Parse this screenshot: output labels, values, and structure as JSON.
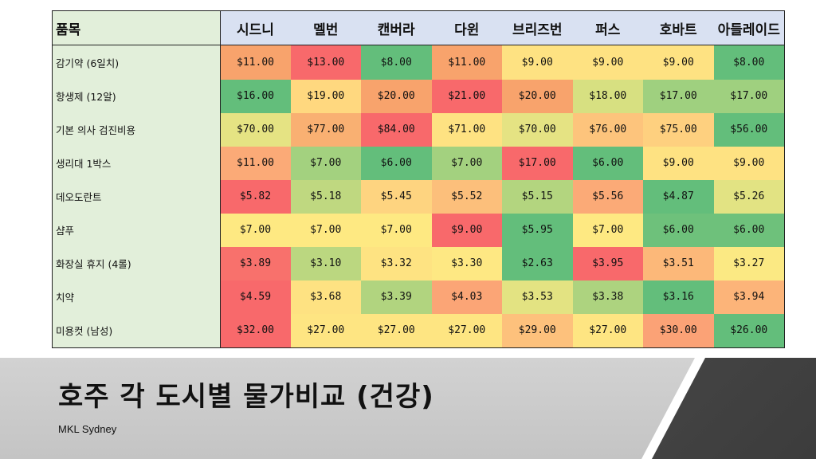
{
  "table": {
    "item_header": "품목",
    "cities": [
      "시드니",
      "멜번",
      "캔버라",
      "다윈",
      "브리즈번",
      "퍼스",
      "호바트",
      "아들레이드"
    ],
    "rows": [
      {
        "item": "감기약 (6일치)",
        "values": [
          "$11.00",
          "$13.00",
          "$8.00",
          "$11.00",
          "$9.00",
          "$9.00",
          "$9.00",
          "$8.00"
        ],
        "colors": [
          "#f8a36c",
          "#f8696b",
          "#63be7b",
          "#f8a36c",
          "#fee282",
          "#fee282",
          "#fee282",
          "#63be7b"
        ]
      },
      {
        "item": "항생제 (12알)",
        "values": [
          "$16.00",
          "$19.00",
          "$20.00",
          "$21.00",
          "$20.00",
          "$18.00",
          "$17.00",
          "$17.00"
        ],
        "colors": [
          "#63be7b",
          "#ffd87f",
          "#f8a36c",
          "#f8696b",
          "#f8a36c",
          "#d7e081",
          "#9fd07f",
          "#9fd07f"
        ]
      },
      {
        "item": "기본 의사 검진비용",
        "values": [
          "$70.00",
          "$77.00",
          "$84.00",
          "$71.00",
          "$70.00",
          "$76.00",
          "$75.00",
          "$56.00"
        ],
        "colors": [
          "#e5e383",
          "#f9b072",
          "#f8696b",
          "#fee282",
          "#e5e383",
          "#fdc47c",
          "#fed07f",
          "#63be7b"
        ]
      },
      {
        "item": "생리대 1박스",
        "values": [
          "$11.00",
          "$7.00",
          "$6.00",
          "$7.00",
          "$17.00",
          "$6.00",
          "$9.00",
          "$9.00"
        ],
        "colors": [
          "#fbaa77",
          "#a3d17f",
          "#63be7b",
          "#a3d17f",
          "#f8696b",
          "#63be7b",
          "#fee282",
          "#fee282"
        ]
      },
      {
        "item": "데오도란트",
        "values": [
          "$5.82",
          "$5.18",
          "$5.45",
          "$5.52",
          "$5.15",
          "$5.56",
          "$4.87",
          "$5.26"
        ],
        "colors": [
          "#f8696b",
          "#bfd880",
          "#fed480",
          "#fcbf7b",
          "#b3d57f",
          "#fbaa77",
          "#63be7b",
          "#e2e383"
        ]
      },
      {
        "item": "샴푸",
        "values": [
          "$7.00",
          "$7.00",
          "$7.00",
          "$9.00",
          "$5.95",
          "$7.00",
          "$6.00",
          "$6.00"
        ],
        "colors": [
          "#fee982",
          "#fee982",
          "#fee982",
          "#f8696b",
          "#63be7b",
          "#fee982",
          "#6ec17b",
          "#6ec17b"
        ]
      },
      {
        "item": "화장실 휴지 (4롤)",
        "values": [
          "$3.89",
          "$3.10",
          "$3.32",
          "$3.30",
          "$2.63",
          "$3.95",
          "$3.51",
          "$3.27"
        ],
        "colors": [
          "#f8716c",
          "#bbd780",
          "#fee382",
          "#fee883",
          "#63be7b",
          "#f8696b",
          "#fcb879",
          "#fbe983"
        ]
      },
      {
        "item": "치약",
        "values": [
          "$4.59",
          "$3.68",
          "$3.39",
          "$4.03",
          "$3.53",
          "$3.38",
          "$3.16",
          "$3.94"
        ],
        "colors": [
          "#f8696b",
          "#fee282",
          "#b1d47f",
          "#fba576",
          "#e3e382",
          "#add37f",
          "#63be7b",
          "#fcb479"
        ]
      },
      {
        "item": "미용컷 (남성)",
        "values": [
          "$32.00",
          "$27.00",
          "$27.00",
          "$27.00",
          "$29.00",
          "$27.00",
          "$30.00",
          "$26.00"
        ],
        "colors": [
          "#f8696b",
          "#fee582",
          "#fee582",
          "#fee582",
          "#fdc17c",
          "#fee582",
          "#fba276",
          "#63be7b"
        ]
      }
    ]
  },
  "slide": {
    "title": "호주 각 도시별 물가비교 (건강)",
    "subtitle": "MKL Sydney"
  }
}
